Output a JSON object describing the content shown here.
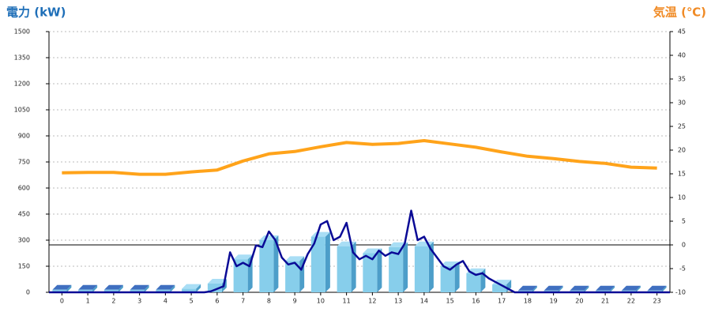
{
  "chart_data": {
    "type": "combo",
    "y_label": "電力 (kW)",
    "y_label_color": "#1f6fb8",
    "y2_label": "気温 (℃)",
    "y2_label_color": "#f08a24",
    "categories": [
      "0",
      "1",
      "2",
      "3",
      "4",
      "5",
      "6",
      "7",
      "8",
      "9",
      "10",
      "11",
      "12",
      "13",
      "14",
      "15",
      "16",
      "17",
      "18",
      "19",
      "20",
      "21",
      "22",
      "23"
    ],
    "ylim": [
      0,
      1500
    ],
    "yticks": [
      0,
      150,
      300,
      450,
      600,
      750,
      900,
      1050,
      1200,
      1350,
      1500
    ],
    "y2lim": [
      -10,
      45
    ],
    "y2ticks": [
      -10,
      -5,
      0,
      5,
      10,
      15,
      20,
      25,
      30,
      35,
      40,
      45
    ],
    "grid": true,
    "series": [
      {
        "type": "bar",
        "color": "#87ceeb",
        "values": [
          15,
          15,
          15,
          15,
          15,
          20,
          50,
          190,
          300,
          180,
          320,
          265,
          225,
          260,
          265,
          150,
          110,
          45,
          10,
          10,
          10,
          10,
          10,
          10
        ]
      },
      {
        "type": "line",
        "color": "#0a0a96",
        "x": [
          -0.5,
          5.5,
          5.75,
          6,
          6.25,
          6.5,
          6.75,
          7,
          7.25,
          7.5,
          7.75,
          8,
          8.25,
          8.5,
          8.75,
          9,
          9.25,
          9.5,
          9.75,
          10,
          10.25,
          10.5,
          10.75,
          11,
          11.25,
          11.5,
          11.75,
          12,
          12.25,
          12.5,
          12.75,
          13,
          13.25,
          13.5,
          13.75,
          14,
          14.25,
          14.5,
          14.75,
          15,
          15.25,
          15.5,
          15.75,
          16,
          16.25,
          16.5,
          16.75,
          17,
          17.25,
          17.5,
          23.5
        ],
        "values": [
          0,
          0,
          5,
          20,
          35,
          230,
          150,
          170,
          150,
          270,
          260,
          350,
          300,
          200,
          160,
          170,
          130,
          220,
          280,
          390,
          410,
          300,
          320,
          400,
          230,
          190,
          210,
          190,
          240,
          210,
          230,
          220,
          280,
          470,
          300,
          320,
          250,
          200,
          150,
          130,
          160,
          180,
          120,
          100,
          110,
          80,
          60,
          40,
          20,
          0,
          0
        ]
      },
      {
        "type": "line",
        "axis": "y2",
        "color": "#ffa31a",
        "values": [
          15.2,
          15.3,
          15.3,
          14.9,
          14.9,
          15.4,
          15.8,
          17.7,
          19.2,
          19.7,
          20.7,
          21.6,
          21.2,
          21.4,
          22.0,
          21.3,
          20.6,
          19.6,
          18.7,
          18.2,
          17.6,
          17.2,
          16.4,
          16.2
        ]
      }
    ]
  }
}
